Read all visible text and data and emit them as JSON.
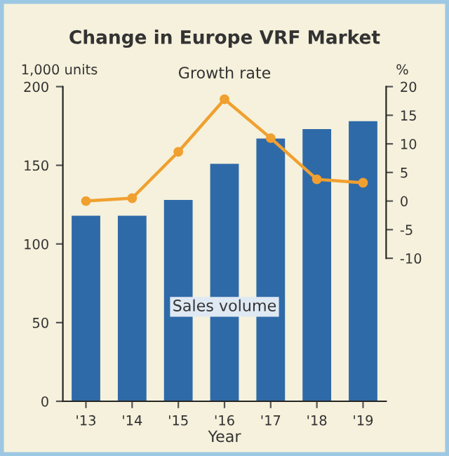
{
  "chart_data": {
    "type": "bar",
    "title": "Change in Europe VRF Market",
    "xlabel": "Year",
    "ylabel": "1,000 units",
    "y2label": "%",
    "categories": [
      "'13",
      "'14",
      "'15",
      "'16",
      "'17",
      "'18",
      "'19"
    ],
    "series": [
      {
        "color": "#2f6aa8",
        "values": [
          118,
          118,
          128,
          151,
          167,
          173,
          178
        ]
      },
      {
        "type": "line",
        "axis": "y2",
        "color": "#f0a030",
        "values": [
          0,
          0.5,
          8.6,
          17.8,
          11,
          3.8,
          3.2
        ],
        "marker": "circle"
      }
    ],
    "ylim": [
      0,
      200
    ],
    "yticks": [
      0,
      50,
      100,
      150,
      200
    ],
    "y2lim": [
      -35,
      20
    ],
    "y2ticks": [
      -10,
      -5,
      0,
      5,
      10,
      15,
      20
    ],
    "annotations": [
      "Growth rate",
      "Sales volume"
    ],
    "grid": false,
    "legend": false
  }
}
